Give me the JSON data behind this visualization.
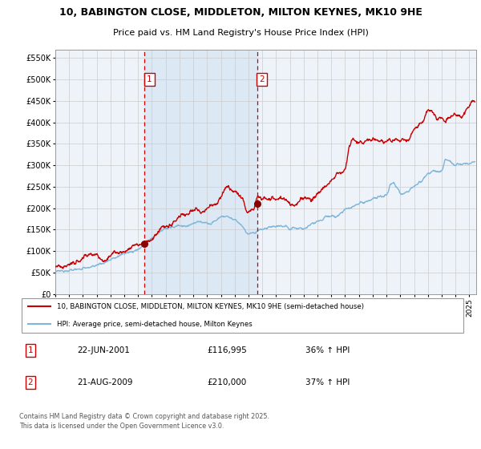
{
  "title_line1": "10, BABINGTON CLOSE, MIDDLETON, MILTON KEYNES, MK10 9HE",
  "title_line2": "Price paid vs. HM Land Registry's House Price Index (HPI)",
  "ylabel_ticks": [
    "£0",
    "£50K",
    "£100K",
    "£150K",
    "£200K",
    "£250K",
    "£300K",
    "£350K",
    "£400K",
    "£450K",
    "£500K",
    "£550K"
  ],
  "ytick_values": [
    0,
    50000,
    100000,
    150000,
    200000,
    250000,
    300000,
    350000,
    400000,
    450000,
    500000,
    550000
  ],
  "ylim": [
    0,
    570000
  ],
  "xlim_start": 1995.0,
  "xlim_end": 2025.5,
  "xtick_years": [
    1995,
    1996,
    1997,
    1998,
    1999,
    2000,
    2001,
    2002,
    2003,
    2004,
    2005,
    2006,
    2007,
    2008,
    2009,
    2010,
    2011,
    2012,
    2013,
    2014,
    2015,
    2016,
    2017,
    2018,
    2019,
    2020,
    2021,
    2022,
    2023,
    2024,
    2025
  ],
  "vline1_x": 2001.47,
  "vline2_x": 2009.64,
  "shade_color": "#dce9f5",
  "vline_color": "#cc0000",
  "red_line_color": "#cc0000",
  "blue_line_color": "#7fb5d9",
  "dot_color": "#880000",
  "sale1_year": 2001.47,
  "sale1_price": 116995,
  "sale2_year": 2009.64,
  "sale2_price": 210000,
  "legend_line1": "10, BABINGTON CLOSE, MIDDLETON, MILTON KEYNES, MK10 9HE (semi-detached house)",
  "legend_line2": "HPI: Average price, semi-detached house, Milton Keynes",
  "annotation1": "22-JUN-2001",
  "annotation1b": "£116,995",
  "annotation1c": "36% ↑ HPI",
  "annotation2": "21-AUG-2009",
  "annotation2b": "£210,000",
  "annotation2c": "37% ↑ HPI",
  "footer": "Contains HM Land Registry data © Crown copyright and database right 2025.\nThis data is licensed under the Open Government Licence v3.0.",
  "bg_color": "#ffffff",
  "plot_bg_color": "#eef3fa",
  "grid_color": "#cccccc"
}
